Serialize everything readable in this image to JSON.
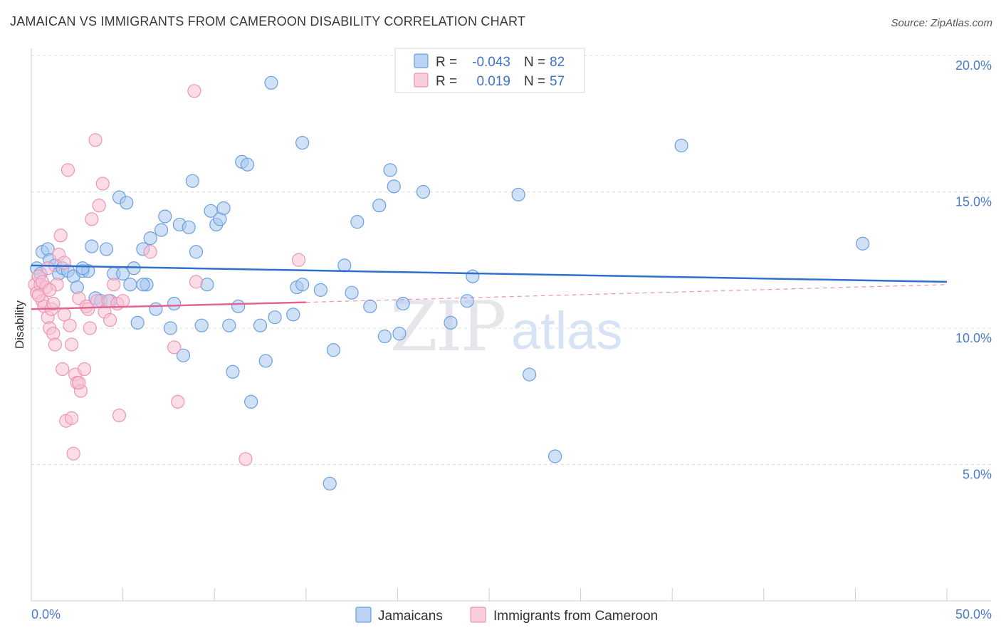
{
  "title": "JAMAICAN VS IMMIGRANTS FROM CAMEROON DISABILITY CORRELATION CHART",
  "source": "Source: ZipAtlas.com",
  "chart_data": {
    "type": "scatter",
    "ylabel": "Disability",
    "xlim": [
      0,
      50
    ],
    "ylim": [
      0,
      20
    ],
    "x_tick_labels": [
      "0.0%",
      "50.0%"
    ],
    "y_ticks": [
      5,
      10,
      15,
      20
    ],
    "y_tick_labels": [
      "5.0%",
      "10.0%",
      "15.0%",
      "20.0%"
    ],
    "watermark": {
      "zip": "ZIP",
      "atlas": "atlas"
    },
    "legend": {
      "r_label": "R =",
      "n_label": "N =",
      "entries": [
        {
          "r": "-0.043",
          "n": "82"
        },
        {
          "r": "0.019",
          "n": "57"
        }
      ]
    },
    "series": [
      {
        "name": "Jamaicans",
        "color": "#6b9fe0",
        "fill": "#a9c8f0",
        "line_color": "#2f6fce",
        "trend": {
          "x": [
            0,
            50
          ],
          "y": [
            12.3,
            11.7
          ]
        },
        "points": [
          [
            0.3,
            12.2
          ],
          [
            0.5,
            12.0
          ],
          [
            0.6,
            12.8
          ],
          [
            0.9,
            12.9
          ],
          [
            1.0,
            12.5
          ],
          [
            1.3,
            12.3
          ],
          [
            1.5,
            12.0
          ],
          [
            1.7,
            12.2
          ],
          [
            2.0,
            12.1
          ],
          [
            2.3,
            11.9
          ],
          [
            2.5,
            11.5
          ],
          [
            2.8,
            12.1
          ],
          [
            3.1,
            12.1
          ],
          [
            3.3,
            13.0
          ],
          [
            3.5,
            11.1
          ],
          [
            3.8,
            11.0
          ],
          [
            4.1,
            12.9
          ],
          [
            4.3,
            11.0
          ],
          [
            4.5,
            12.0
          ],
          [
            4.8,
            14.8
          ],
          [
            5.0,
            12.0
          ],
          [
            5.2,
            14.6
          ],
          [
            5.4,
            11.6
          ],
          [
            5.6,
            12.2
          ],
          [
            5.8,
            10.2
          ],
          [
            6.1,
            12.9
          ],
          [
            6.3,
            11.6
          ],
          [
            6.5,
            13.3
          ],
          [
            6.8,
            10.7
          ],
          [
            7.1,
            13.6
          ],
          [
            7.3,
            14.1
          ],
          [
            7.6,
            10.0
          ],
          [
            7.8,
            10.9
          ],
          [
            8.1,
            13.8
          ],
          [
            8.3,
            9.0
          ],
          [
            8.6,
            13.7
          ],
          [
            8.8,
            15.4
          ],
          [
            9.0,
            12.8
          ],
          [
            9.3,
            10.1
          ],
          [
            9.6,
            11.6
          ],
          [
            9.8,
            14.3
          ],
          [
            10.1,
            13.8
          ],
          [
            10.3,
            14.0
          ],
          [
            10.5,
            14.4
          ],
          [
            10.8,
            10.1
          ],
          [
            11.0,
            8.4
          ],
          [
            11.3,
            10.8
          ],
          [
            11.5,
            16.1
          ],
          [
            11.8,
            16.0
          ],
          [
            12.0,
            7.3
          ],
          [
            12.5,
            10.1
          ],
          [
            12.8,
            8.8
          ],
          [
            13.1,
            19.0
          ],
          [
            13.3,
            10.4
          ],
          [
            14.3,
            10.5
          ],
          [
            14.5,
            11.5
          ],
          [
            14.8,
            16.8
          ],
          [
            14.8,
            11.6
          ],
          [
            15.8,
            11.4
          ],
          [
            16.3,
            4.3
          ],
          [
            16.5,
            9.2
          ],
          [
            17.1,
            12.3
          ],
          [
            17.5,
            11.3
          ],
          [
            17.8,
            13.9
          ],
          [
            18.5,
            10.8
          ],
          [
            19.0,
            14.5
          ],
          [
            19.3,
            9.7
          ],
          [
            19.6,
            15.8
          ],
          [
            19.8,
            15.2
          ],
          [
            20.1,
            9.8
          ],
          [
            20.3,
            10.9
          ],
          [
            21.4,
            15.0
          ],
          [
            22.9,
            10.2
          ],
          [
            23.8,
            11.0
          ],
          [
            24.1,
            11.9
          ],
          [
            26.6,
            14.9
          ],
          [
            27.2,
            8.3
          ],
          [
            28.6,
            5.3
          ],
          [
            35.5,
            16.7
          ],
          [
            45.4,
            13.1
          ],
          [
            2.8,
            12.2
          ],
          [
            6.1,
            11.6
          ]
        ]
      },
      {
        "name": "Immigrants from Cameroon",
        "color": "#ee94b4",
        "fill": "#f6c1d4",
        "line_color": "#e06596",
        "trend": {
          "x": [
            0,
            15
          ],
          "y": [
            10.7,
            10.95
          ]
        },
        "trend_dashed": {
          "x": [
            15,
            50
          ],
          "y": [
            10.95,
            11.6
          ]
        },
        "points": [
          [
            0.2,
            11.6
          ],
          [
            0.3,
            11.3
          ],
          [
            0.4,
            11.9
          ],
          [
            0.5,
            11.6
          ],
          [
            0.6,
            11.0
          ],
          [
            0.7,
            10.8
          ],
          [
            0.8,
            11.5
          ],
          [
            0.9,
            10.4
          ],
          [
            1.0,
            10.0
          ],
          [
            1.1,
            10.7
          ],
          [
            1.2,
            9.8
          ],
          [
            1.3,
            9.4
          ],
          [
            1.4,
            11.6
          ],
          [
            1.5,
            12.7
          ],
          [
            1.6,
            13.4
          ],
          [
            1.7,
            8.5
          ],
          [
            1.8,
            12.4
          ],
          [
            1.9,
            6.6
          ],
          [
            2.0,
            15.8
          ],
          [
            2.1,
            10.1
          ],
          [
            2.2,
            6.7
          ],
          [
            2.3,
            5.4
          ],
          [
            2.4,
            8.3
          ],
          [
            2.5,
            8.0
          ],
          [
            2.6,
            11.1
          ],
          [
            2.7,
            7.7
          ],
          [
            2.9,
            8.5
          ],
          [
            3.0,
            10.8
          ],
          [
            3.2,
            10.0
          ],
          [
            3.3,
            14.0
          ],
          [
            3.5,
            16.9
          ],
          [
            3.6,
            11.0
          ],
          [
            3.7,
            14.5
          ],
          [
            3.9,
            15.3
          ],
          [
            4.0,
            10.6
          ],
          [
            4.2,
            11.0
          ],
          [
            4.3,
            10.3
          ],
          [
            4.5,
            11.6
          ],
          [
            4.7,
            10.9
          ],
          [
            4.8,
            6.8
          ],
          [
            5.0,
            11.0
          ],
          [
            6.5,
            12.8
          ],
          [
            7.8,
            9.3
          ],
          [
            8.0,
            7.3
          ],
          [
            8.9,
            18.7
          ],
          [
            9.0,
            11.7
          ],
          [
            11.7,
            5.2
          ],
          [
            14.6,
            12.5
          ],
          [
            0.4,
            11.2
          ],
          [
            0.6,
            11.7
          ],
          [
            1.0,
            11.4
          ],
          [
            1.2,
            10.9
          ],
          [
            1.8,
            10.5
          ],
          [
            2.2,
            9.4
          ],
          [
            2.6,
            8.0
          ],
          [
            3.1,
            10.7
          ],
          [
            0.9,
            12.2
          ]
        ]
      }
    ]
  }
}
